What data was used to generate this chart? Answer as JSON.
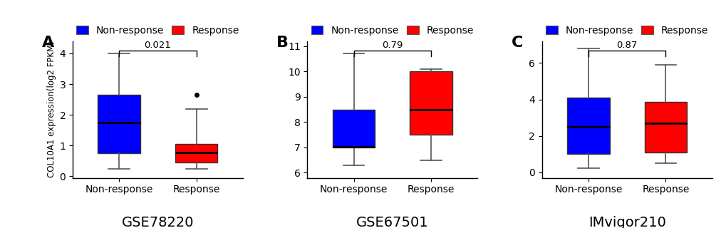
{
  "panels": [
    {
      "label": "A",
      "title": "GSE78220",
      "ylabel": "COL10A1 expression(log2 FPKM)",
      "pvalue": "0.021",
      "ylim": [
        -0.05,
        4.4
      ],
      "yticks": [
        0,
        1,
        2,
        3,
        4
      ],
      "boxes": [
        {
          "group": "Non-response",
          "color": "#0000FF",
          "whislo": 0.25,
          "q1": 0.75,
          "med": 1.75,
          "q3": 2.65,
          "whishi": 4.0,
          "fliers": []
        },
        {
          "group": "Response",
          "color": "#FF0000",
          "whislo": 0.25,
          "q1": 0.45,
          "med": 0.78,
          "q3": 1.05,
          "whishi": 2.2,
          "fliers": [
            2.65
          ]
        }
      ]
    },
    {
      "label": "B",
      "title": "GSE67501",
      "ylabel": "",
      "pvalue": "0.79",
      "ylim": [
        5.8,
        11.2
      ],
      "yticks": [
        6,
        7,
        8,
        9,
        10,
        11
      ],
      "boxes": [
        {
          "group": "Non-response",
          "color": "#0000FF",
          "whislo": 6.3,
          "q1": 7.0,
          "med": 7.02,
          "q3": 8.5,
          "whishi": 10.7,
          "fliers": []
        },
        {
          "group": "Response",
          "color": "#FF0000",
          "whislo": 6.5,
          "q1": 7.5,
          "med": 8.5,
          "q3": 10.0,
          "whishi": 10.1,
          "fliers": []
        }
      ]
    },
    {
      "label": "C",
      "title": "IMvigor210",
      "ylabel": "",
      "pvalue": "0.87",
      "ylim": [
        -0.3,
        7.2
      ],
      "yticks": [
        0,
        2,
        4,
        6
      ],
      "boxes": [
        {
          "group": "Non-response",
          "color": "#0000FF",
          "whislo": 0.25,
          "q1": 1.0,
          "med": 2.5,
          "q3": 4.1,
          "whishi": 6.8,
          "fliers": []
        },
        {
          "group": "Response",
          "color": "#FF0000",
          "whislo": 0.5,
          "q1": 1.1,
          "med": 2.7,
          "q3": 3.85,
          "whishi": 5.9,
          "fliers": []
        }
      ]
    }
  ],
  "blue_color": "#0000FF",
  "red_color": "#FF0000",
  "legend_labels": [
    "Non-response",
    "Response"
  ],
  "background_color": "#FFFFFF",
  "box_width": 0.55,
  "title_fontsize": 14,
  "label_fontsize": 16,
  "tick_fontsize": 10,
  "legend_fontsize": 10
}
